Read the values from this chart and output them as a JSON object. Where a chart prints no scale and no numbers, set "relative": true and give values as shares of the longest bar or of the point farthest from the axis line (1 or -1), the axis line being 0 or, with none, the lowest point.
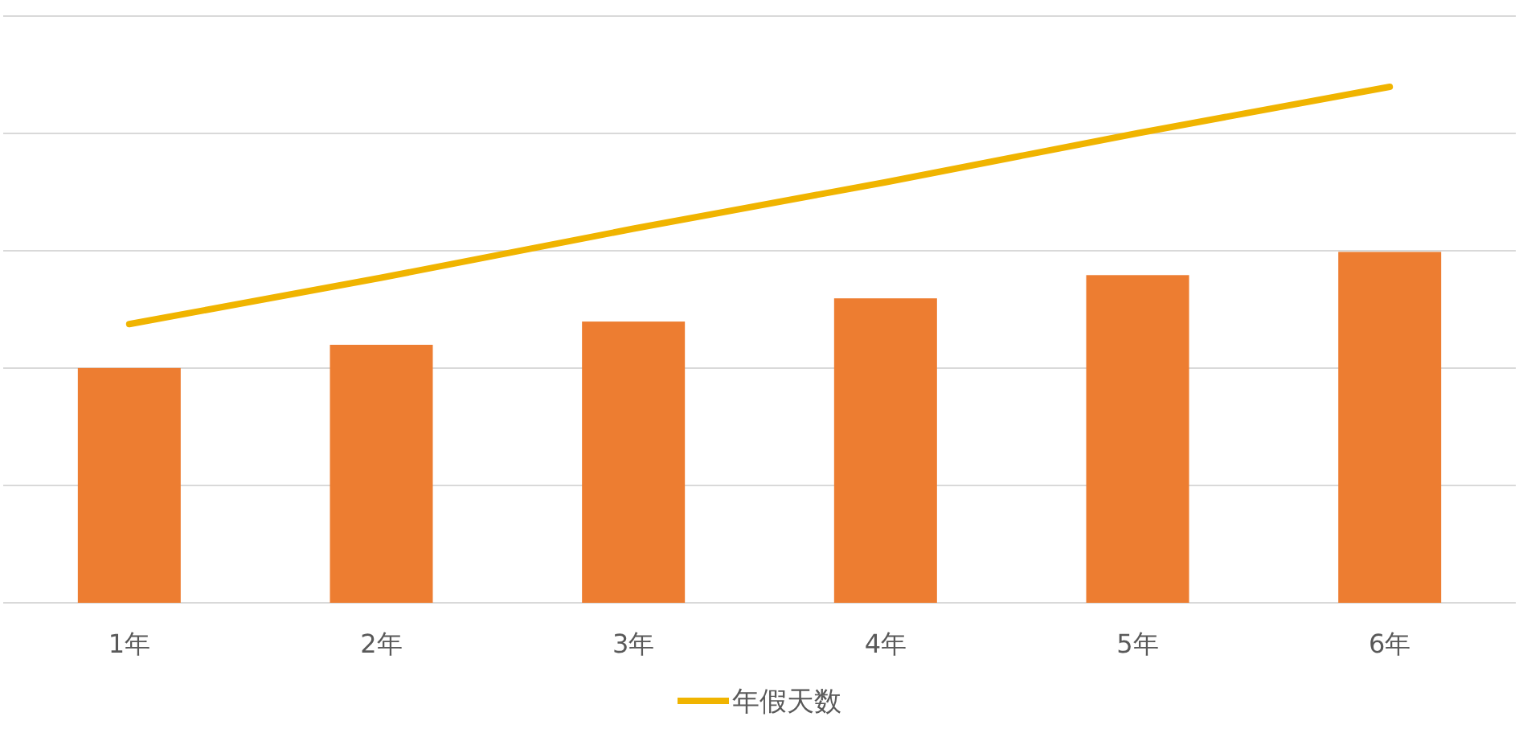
{
  "chart_data": {
    "type": "bar",
    "relative": true,
    "grid": "y",
    "legend": "bottom",
    "categories": [
      "1年",
      "2年",
      "3年",
      "4年",
      "5年",
      "6年"
    ],
    "series": [
      {
        "color": "#ed7d31",
        "values": [
          0.455,
          0.5,
          0.545,
          0.59,
          0.635,
          0.68
        ]
      },
      {
        "type": "line",
        "name": "年假天数",
        "color": "#f0b400",
        "values": [
          0.54,
          0.63,
          0.725,
          0.815,
          0.91,
          1
        ]
      }
    ]
  }
}
